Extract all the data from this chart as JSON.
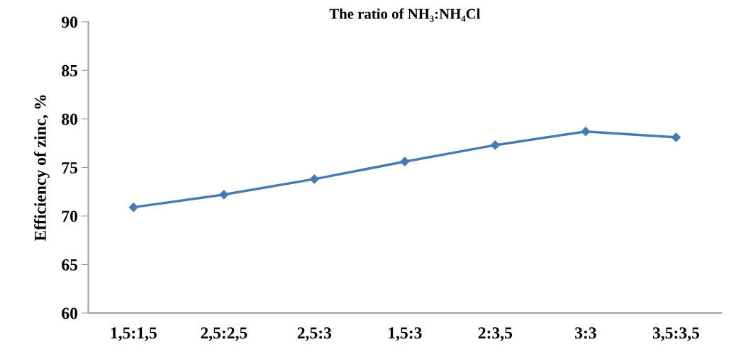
{
  "chart_data": {
    "type": "line",
    "title": "The ratio of NH₃:NH₄Cl",
    "ylabel": "Efficiency of zinc, %",
    "categories": [
      "1,5:1,5",
      "2,5:2,5",
      "2,5:3",
      "1,5:3",
      "2:3,5",
      "3:3",
      "3,5:3,5"
    ],
    "series": [
      {
        "color": "#4a7ab4",
        "values": [
          70.9,
          72.2,
          73.8,
          75.6,
          77.3,
          78.7,
          78.1
        ]
      }
    ],
    "ylim": [
      60,
      90
    ],
    "yticks": [
      60,
      65,
      70,
      75,
      80,
      85,
      90
    ],
    "grid": false,
    "legend": false,
    "marker": "diamond",
    "line_style": "solid"
  }
}
